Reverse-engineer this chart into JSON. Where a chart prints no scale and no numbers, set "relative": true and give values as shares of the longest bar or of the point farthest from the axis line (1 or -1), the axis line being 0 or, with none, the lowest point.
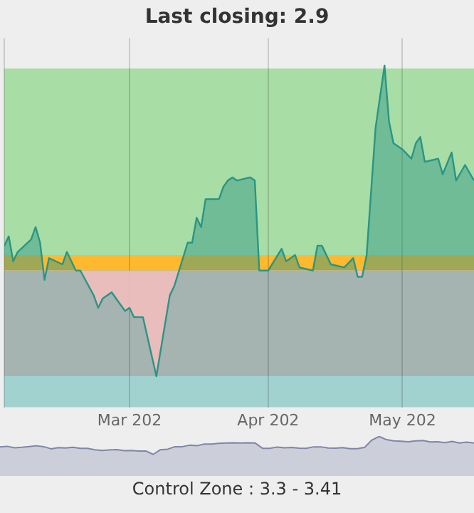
{
  "chart_data": [
    {
      "type": "area",
      "title": "Last closing: 2.9",
      "relative": true,
      "x": [
        "--02-01",
        "--02-02",
        "--02-03",
        "--02-04",
        "--02-07",
        "--02-08",
        "--02-09",
        "--02-10",
        "--02-11",
        "--02-14",
        "--02-15",
        "--02-17",
        "--02-18",
        "--02-21",
        "--02-22",
        "--02-23",
        "--02-25",
        "--02-28",
        "--03-01",
        "--03-02",
        "--03-04",
        "--03-07",
        "--03-10",
        "--03-11",
        "--03-14",
        "--03-15",
        "--03-16",
        "--03-17",
        "--03-18",
        "--03-21",
        "--03-22",
        "--03-23",
        "--03-24",
        "--03-25",
        "--03-28",
        "--03-29",
        "--03-30",
        "--04-01",
        "--04-04",
        "--04-05",
        "--04-07",
        "--04-08",
        "--04-11",
        "--04-12",
        "--04-13",
        "--04-15",
        "--04-18",
        "--04-20",
        "--04-21",
        "--04-22",
        "--04-23",
        "--04-25",
        "--04-27",
        "--04-28",
        "--04-29",
        "--05-01",
        "--05-03",
        "--05-04",
        "--05-05",
        "--05-06",
        "--05-09",
        "--05-10",
        "--05-12",
        "--05-13",
        "--05-15",
        "--05-17"
      ],
      "series": [
        {
          "color": "#2a9585",
          "values": [
            0.42,
            0.45,
            0.37,
            0.4,
            0.44,
            0.48,
            0.43,
            0.31,
            0.38,
            0.36,
            0.4,
            0.34,
            0.34,
            0.26,
            0.22,
            0.25,
            0.27,
            0.21,
            0.22,
            0.19,
            0.19,
            0,
            0.26,
            0.29,
            0.43,
            0.43,
            0.51,
            0.48,
            0.57,
            0.57,
            0.61,
            0.63,
            0.64,
            0.63,
            0.64,
            0.63,
            0.34,
            0.34,
            0.41,
            0.37,
            0.39,
            0.35,
            0.34,
            0.42,
            0.42,
            0.36,
            0.35,
            0.38,
            0.32,
            0.32,
            0.39,
            0.8,
            1,
            0.82,
            0.75,
            0.73,
            0.7,
            0.75,
            0.77,
            0.69,
            0.7,
            0.65,
            0.72,
            0.63,
            0.68,
            0.63
          ]
        }
      ],
      "xlim": [
        "--02-01",
        "--05-17"
      ],
      "xticks": [
        {
          "value": "--02-01",
          "label": null
        },
        {
          "value": "--03-01",
          "label": "Mar 202"
        },
        {
          "value": "--04-01",
          "label": "Apr 202"
        },
        {
          "value": "--05-01",
          "label": "May 202"
        }
      ],
      "bands": [
        {
          "axis": "y",
          "from": 0.39,
          "to": 0.99,
          "color": "#a8dda5"
        },
        {
          "axis": "y",
          "from": 0.34,
          "to": 0.39,
          "color": "#ffb92e"
        },
        {
          "axis": "y",
          "from": 0,
          "to": 0.34,
          "color": "#a5b3b1"
        },
        {
          "axis": "y",
          "from": -0.1,
          "to": 0,
          "color": "#a2d2d0"
        }
      ],
      "grid": "x",
      "annotations": [
        "Control Zone : 3.3 - 3.41"
      ]
    },
    {
      "type": "area",
      "relative": true,
      "categories": [
        null,
        null,
        null,
        null,
        null,
        null,
        null,
        null,
        null,
        null,
        null,
        null,
        null,
        null,
        null,
        null,
        null,
        null,
        null,
        null,
        null,
        null,
        null,
        null,
        null,
        null,
        null,
        null,
        null,
        null,
        null,
        null,
        null,
        null,
        null,
        null,
        null,
        null,
        null,
        null,
        null,
        null,
        null,
        null,
        null,
        null,
        null,
        null,
        null,
        null,
        null,
        null,
        null,
        null,
        null,
        null,
        null,
        null,
        null,
        null,
        null,
        null,
        null,
        null,
        null,
        null
      ],
      "series": [
        {
          "color": "#7f86a8",
          "values": [
            0.42,
            0.45,
            0.37,
            0.4,
            0.44,
            0.48,
            0.43,
            0.31,
            0.38,
            0.36,
            0.4,
            0.34,
            0.34,
            0.26,
            0.22,
            0.25,
            0.27,
            0.21,
            0.22,
            0.19,
            0.19,
            0,
            0.26,
            0.29,
            0.43,
            0.43,
            0.51,
            0.48,
            0.57,
            0.57,
            0.61,
            0.63,
            0.64,
            0.63,
            0.64,
            0.63,
            0.34,
            0.34,
            0.41,
            0.37,
            0.39,
            0.35,
            0.34,
            0.42,
            0.42,
            0.36,
            0.35,
            0.38,
            0.32,
            0.32,
            0.39,
            0.8,
            1,
            0.82,
            0.75,
            0.73,
            0.7,
            0.75,
            0.77,
            0.69,
            0.7,
            0.65,
            0.72,
            0.63,
            0.68,
            0.63
          ]
        }
      ],
      "grid": false
    }
  ]
}
